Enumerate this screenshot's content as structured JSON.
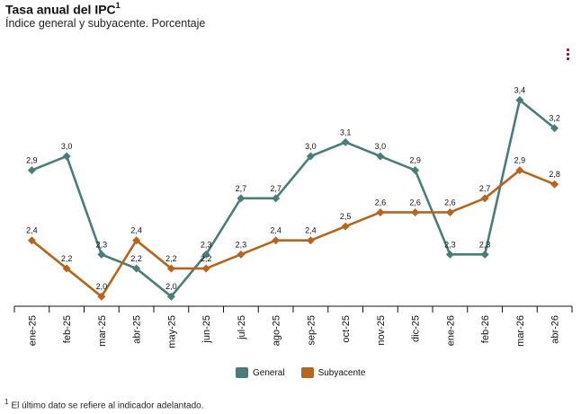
{
  "header": {
    "title": "Tasa anual del IPC",
    "title_sup": "1",
    "subtitle": "Índice general y subyacente. Porcentaje"
  },
  "menu": {
    "icon": "kebab-menu-icon"
  },
  "colors": {
    "general": "#4a7d78",
    "subyacente": "#b5651d",
    "axis": "#111111"
  },
  "chart_data": {
    "type": "line",
    "title": "Tasa anual del IPC",
    "subtitle": "Índice general y subyacente. Porcentaje",
    "categories": [
      "ene-25",
      "feb-25",
      "mar-25",
      "abr-25",
      "may-25",
      "jun-25",
      "jul-25",
      "ago-25",
      "sep-25",
      "oct-25",
      "nov-25",
      "dic-25",
      "ene-26",
      "feb-26",
      "mar-26",
      "abr-26"
    ],
    "series": [
      {
        "name": "General",
        "color": "#4a7d78",
        "values": [
          2.9,
          3.0,
          2.3,
          2.2,
          2.0,
          2.3,
          2.7,
          2.7,
          3.0,
          3.1,
          3.0,
          2.9,
          2.3,
          2.3,
          3.4,
          3.2
        ],
        "labels": [
          "2,9",
          "3,0",
          "2,3",
          "2,2",
          "2,0",
          "2,3",
          "2,7",
          "2,7",
          "3,0",
          "3,1",
          "3,0",
          "2,9",
          "2,3",
          "2,3",
          "3,4",
          "3,2"
        ]
      },
      {
        "name": "Subyacente",
        "color": "#b5651d",
        "values": [
          2.4,
          2.2,
          2.0,
          2.4,
          2.2,
          2.2,
          2.3,
          2.4,
          2.4,
          2.5,
          2.6,
          2.6,
          2.6,
          2.7,
          2.9,
          2.8
        ],
        "labels": [
          "2,4",
          "2,2",
          "2,0",
          "2,4",
          "2,2",
          "2,2",
          "2,3",
          "2,4",
          "2,4",
          "2,5",
          "2,6",
          "2,6",
          "2,6",
          "2,7",
          "2,9",
          "2,8"
        ]
      }
    ],
    "ylim": [
      1.95,
      3.55
    ],
    "grid": false,
    "legend_position": "bottom-center",
    "xlabel": "",
    "ylabel": ""
  },
  "legend": {
    "general": "General",
    "subyacente": "Subyacente"
  },
  "footnote": {
    "sup": "1",
    "text": "El último dato se refiere al indicador adelantado."
  }
}
